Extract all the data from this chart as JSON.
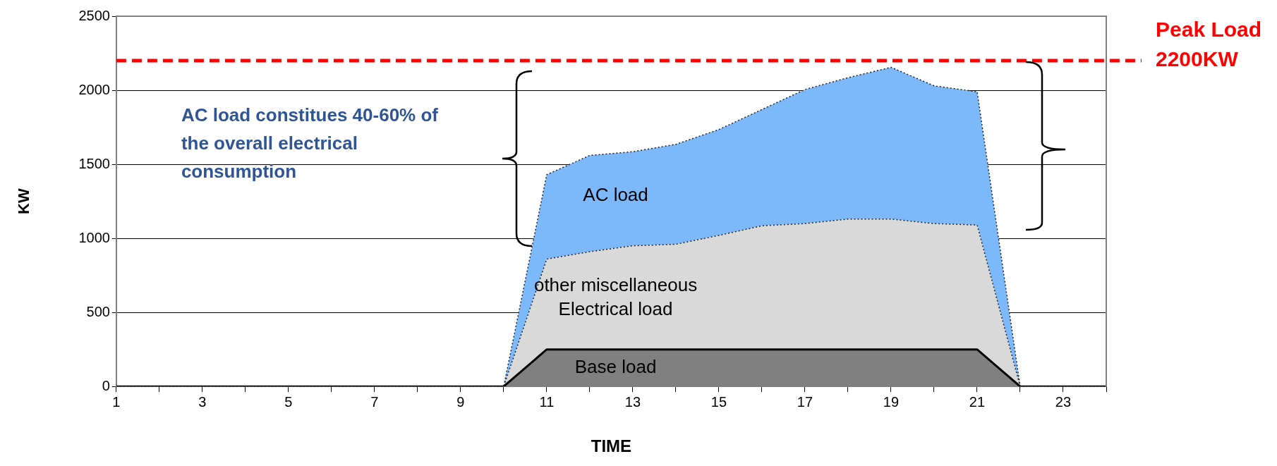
{
  "chart_data": {
    "type": "area",
    "stacked": true,
    "xlabel": "TIME",
    "ylabel": "KW",
    "x": [
      1,
      2,
      3,
      4,
      5,
      6,
      7,
      8,
      9,
      10,
      11,
      12,
      13,
      14,
      15,
      16,
      17,
      18,
      19,
      20,
      21,
      22,
      23,
      24
    ],
    "series": [
      {
        "name": "Base load",
        "color": "#808080",
        "line_style": "solid",
        "values": [
          0,
          0,
          0,
          0,
          0,
          0,
          0,
          0,
          0,
          0,
          250,
          250,
          250,
          250,
          250,
          250,
          250,
          250,
          250,
          250,
          250,
          0,
          0,
          0
        ]
      },
      {
        "name": "other miscellaneous Electrical load",
        "color": "#d9d9d9",
        "line_style": "dotted",
        "values": [
          0,
          0,
          0,
          0,
          0,
          0,
          0,
          0,
          0,
          0,
          610,
          660,
          700,
          710,
          770,
          835,
          850,
          880,
          880,
          850,
          840,
          0,
          0,
          0
        ]
      },
      {
        "name": "AC load",
        "color": "#7db8fb",
        "line_style": "dotted",
        "values": [
          0,
          0,
          0,
          0,
          0,
          0,
          0,
          0,
          0,
          0,
          570,
          650,
          635,
          675,
          715,
          785,
          905,
          955,
          1025,
          930,
          900,
          0,
          0,
          0
        ]
      }
    ],
    "xlim": [
      1,
      24
    ],
    "xticks": [
      1,
      {
        "value": 2,
        "label": null
      },
      3,
      {
        "value": 4,
        "label": null
      },
      5,
      {
        "value": 6,
        "label": null
      },
      7,
      {
        "value": 8,
        "label": null
      },
      9,
      {
        "value": 10,
        "label": null
      },
      11,
      {
        "value": 12,
        "label": null
      },
      13,
      {
        "value": 14,
        "label": null
      },
      15,
      {
        "value": 16,
        "label": null
      },
      17,
      {
        "value": 18,
        "label": null
      },
      19,
      {
        "value": 20,
        "label": null
      },
      21,
      {
        "value": 22,
        "label": null
      },
      23,
      {
        "value": 24,
        "label": null
      }
    ],
    "ylim": [
      0,
      2500
    ],
    "yticks": [
      0,
      500,
      1000,
      1500,
      2000,
      2500
    ],
    "grid": "y",
    "legend": false,
    "ref_lines": [
      {
        "axis": "y",
        "value": 2200,
        "label": "Peak Load 2200KW",
        "color": "#ff0000",
        "line_style": "dashed"
      }
    ],
    "annotations": [
      "AC load constitues 40-60% of the overall electrical consumption"
    ]
  }
}
